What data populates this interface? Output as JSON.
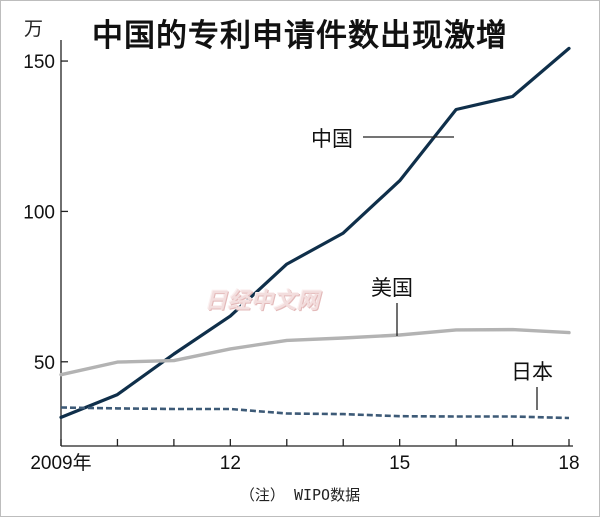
{
  "title": "中国的专利申请件数出现激增",
  "unit": "万",
  "note": "（注） WIPO数据",
  "watermark_text": "日经中文网",
  "colors": {
    "china": "#0f2f4a",
    "usa": "#b3b3b3",
    "japan": "#3d5a77",
    "axis": "#222222",
    "text": "#111111"
  },
  "chart_data": {
    "type": "line",
    "title": "中国的专利申请件数出现激增",
    "ylabel": "万",
    "xlabel": "",
    "x": [
      2009,
      2010,
      2011,
      2012,
      2013,
      2014,
      2015,
      2016,
      2017,
      2018
    ],
    "x_tick_values": [
      2009,
      2012,
      2015,
      2018
    ],
    "x_tick_labels": [
      "2009年",
      "12",
      "15",
      "18"
    ],
    "y_ticks": [
      50,
      100,
      150
    ],
    "xlim": [
      2009,
      2018
    ],
    "ylim": [
      22,
      157
    ],
    "grid": false,
    "series": [
      {
        "name": "中国",
        "key": "china",
        "dashed": false,
        "values": [
          31.5,
          39.1,
          52.6,
          65.2,
          82.5,
          92.8,
          110.2,
          133.9,
          138.2,
          154.2
        ]
      },
      {
        "name": "美国",
        "key": "usa",
        "dashed": false,
        "values": [
          45.7,
          49.9,
          50.4,
          54.3,
          57.1,
          57.9,
          58.9,
          60.6,
          60.7,
          59.7
        ]
      },
      {
        "name": "日本",
        "key": "japan",
        "dashed": true,
        "values": [
          34.8,
          34.5,
          34.3,
          34.3,
          32.8,
          32.6,
          31.9,
          31.8,
          31.8,
          31.3
        ]
      }
    ]
  }
}
